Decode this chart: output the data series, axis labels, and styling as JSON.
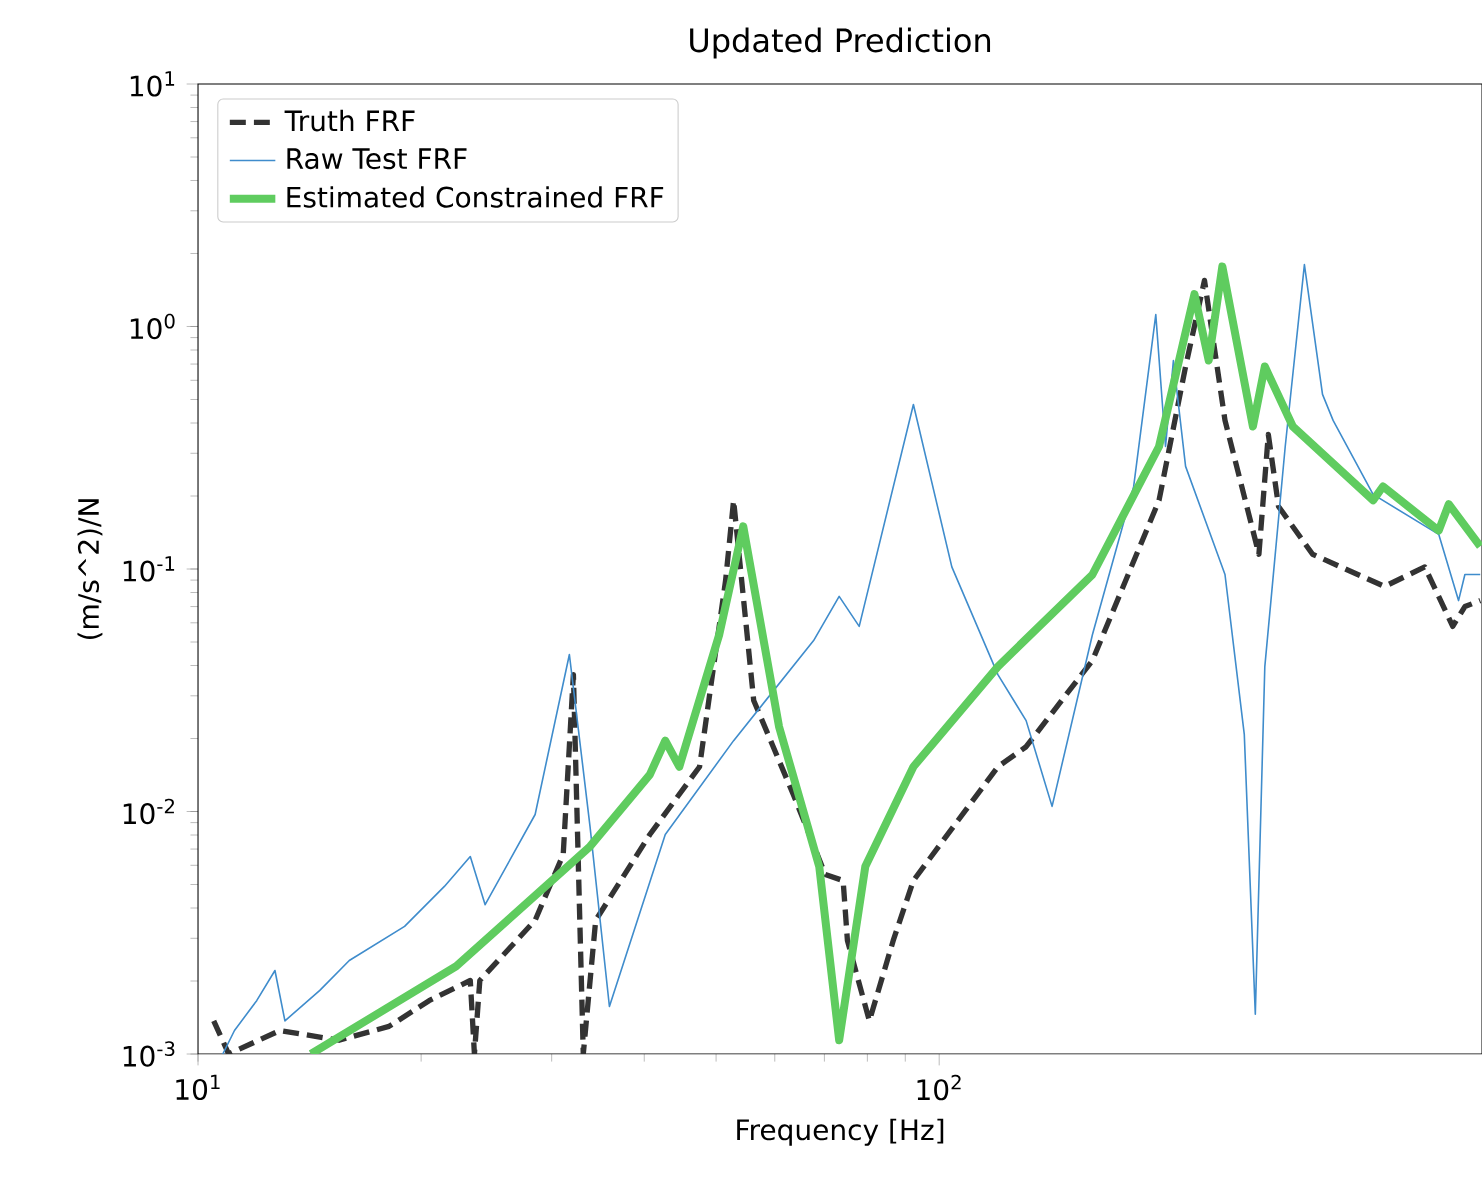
{
  "chart_data": {
    "type": "line",
    "title": "Updated Prediction",
    "xlabel": "Frequency [Hz]",
    "ylabel": "(m/s^2)/N",
    "log": "xy",
    "grid": false,
    "legend": "top left",
    "xlim": [
      10,
      540
    ],
    "ylim": [
      0.001,
      10
    ],
    "xticks": [
      {
        "value": 10,
        "label": "10$^{1}$"
      },
      {
        "value": 100,
        "label": "10$^{2}$"
      }
    ],
    "yticks": [
      {
        "value": 0.001,
        "label": "10$^{-3}$"
      },
      {
        "value": 0.01,
        "label": "10$^{-2}$"
      },
      {
        "value": 0.1,
        "label": "10$^{-1}$"
      },
      {
        "value": 1,
        "label": "10$^{0}$"
      },
      {
        "value": 10,
        "label": "10$^{1}$"
      }
    ],
    "series": [
      {
        "name": "Truth FRF",
        "color": "#333333",
        "line_style": "dashed",
        "x": [
          10.5,
          11.0,
          12.9,
          15.5,
          18.1,
          20.5,
          23.3,
          23.6,
          24.0,
          28.5,
          31.1,
          32.1,
          33.1,
          34.4,
          40.7,
          47.5,
          51.5,
          52.8,
          56.2,
          63.6,
          70.2,
          74.2,
          75.2,
          80.5,
          86.7,
          92.3,
          106,
          120,
          131,
          161,
          198,
          215,
          228,
          243,
          270,
          278,
          287,
          319,
          399,
          452,
          493,
          512,
          537
        ],
        "values": [
          0.00137,
          0.001,
          0.00125,
          0.00114,
          0.0013,
          0.00166,
          0.00201,
          0.001,
          0.00201,
          0.00356,
          0.00665,
          0.0367,
          0.001,
          0.00356,
          0.00804,
          0.0153,
          0.0897,
          0.192,
          0.0287,
          0.0117,
          0.0055,
          0.00519,
          0.00294,
          0.00137,
          0.00294,
          0.00519,
          0.00918,
          0.0153,
          0.0185,
          0.042,
          0.192,
          0.684,
          1.55,
          0.41,
          0.115,
          0.359,
          0.181,
          0.115,
          0.0847,
          0.102,
          0.058,
          0.07,
          0.0741
        ]
      },
      {
        "name": "Raw Test FRF",
        "color": "#3f8ccc",
        "line_style": "solid",
        "x": [
          10.8,
          11.2,
          12.0,
          12.7,
          13.1,
          14.6,
          16.0,
          19.0,
          21.5,
          23.3,
          24.4,
          28.5,
          31.7,
          33.8,
          35.9,
          42.7,
          52.8,
          67.7,
          73.3,
          78.0,
          92.3,
          104,
          120,
          131,
          142,
          161,
          183,
          196,
          202,
          207,
          215,
          243,
          258,
          267,
          275,
          293,
          311,
          329,
          340,
          385,
          472,
          502,
          512,
          537
        ],
        "values": [
          0.001,
          0.00125,
          0.00166,
          0.00221,
          0.00137,
          0.00183,
          0.00243,
          0.00336,
          0.00491,
          0.00652,
          0.00413,
          0.00972,
          0.0444,
          0.00867,
          0.00157,
          0.00804,
          0.0196,
          0.0507,
          0.0771,
          0.058,
          0.477,
          0.102,
          0.0367,
          0.0237,
          0.0105,
          0.0537,
          0.219,
          1.12,
          0.32,
          0.724,
          0.265,
          0.0949,
          0.0208,
          0.00146,
          0.0396,
          0.32,
          1.8,
          0.525,
          0.41,
          0.203,
          0.139,
          0.0741,
          0.0949,
          0.0949
        ]
      },
      {
        "name": "Estimated Constrained FRF",
        "color": "#5fcc5f",
        "line_style": "solid",
        "x": [
          14.2,
          22.3,
          33.8,
          40.7,
          42.7,
          44.6,
          50.5,
          54.4,
          60.8,
          68.9,
          73.3,
          79.5,
          92.3,
          120,
          161,
          198,
          221,
          231,
          241,
          265,
          275,
          300,
          385,
          397,
          472,
          487,
          537
        ],
        "values": [
          0.001,
          0.0023,
          0.00718,
          0.0142,
          0.0196,
          0.0153,
          0.0537,
          0.15,
          0.0224,
          0.00593,
          0.00114,
          0.00593,
          0.0153,
          0.0396,
          0.0949,
          0.32,
          1.36,
          0.724,
          1.77,
          0.387,
          0.684,
          0.387,
          0.192,
          0.219,
          0.144,
          0.185,
          0.124
        ]
      }
    ]
  }
}
